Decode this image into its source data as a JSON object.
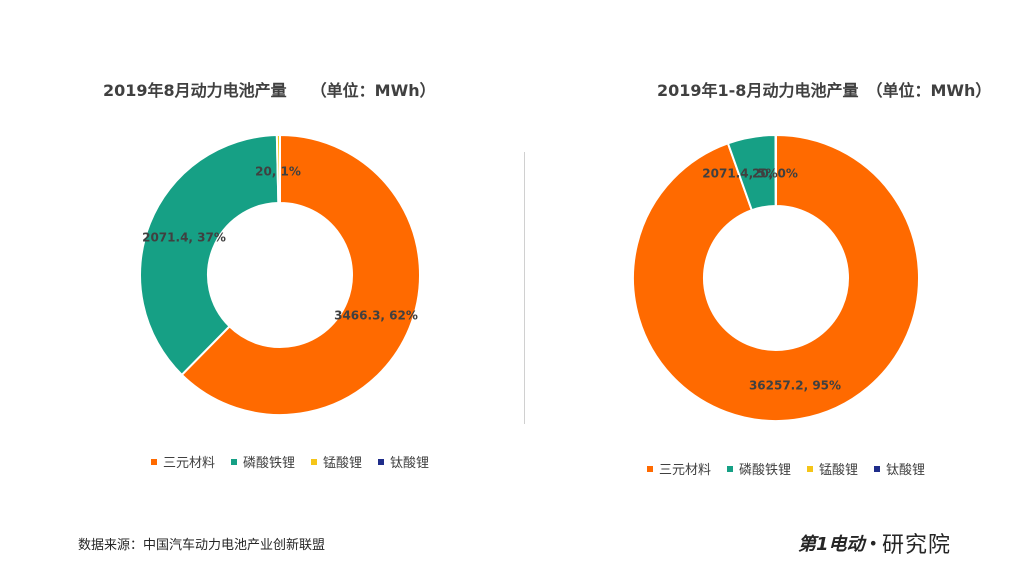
{
  "colors": {
    "三元材料": "#ff6a00",
    "磷酸铁锂": "#16a085",
    "锰酸锂": "#f5c518",
    "钛酸锂": "#1f2d8a"
  },
  "chart_data": [
    {
      "type": "pie",
      "donut": true,
      "title": "2019年8月动力电池产量　　（单位：MWh）",
      "categories": [
        "三元材料",
        "磷酸铁锂",
        "锰酸锂",
        "钛酸锂"
      ],
      "values": [
        3466.3,
        2071.4,
        20,
        0
      ],
      "data_labels": [
        "3466.3, 62%",
        "2071.4, 37%",
        "20, 1%",
        ""
      ],
      "legend": "bottom"
    },
    {
      "type": "pie",
      "donut": true,
      "title": "2019年1-8月动力电池产量　（单位：MWh）",
      "categories": [
        "三元材料",
        "磷酸铁锂",
        "锰酸锂",
        "钛酸锂"
      ],
      "values": [
        36257.2,
        2071.4,
        20,
        0
      ],
      "data_labels": [
        "36257.2, 95%",
        "2071.4, 5%",
        "20, 0%",
        ""
      ],
      "legend": "bottom"
    }
  ],
  "footer": {
    "source": "数据来源：中国汽车动力电池产业创新联盟",
    "logo_mark": "第1电动",
    "logo_text": "研究院"
  }
}
